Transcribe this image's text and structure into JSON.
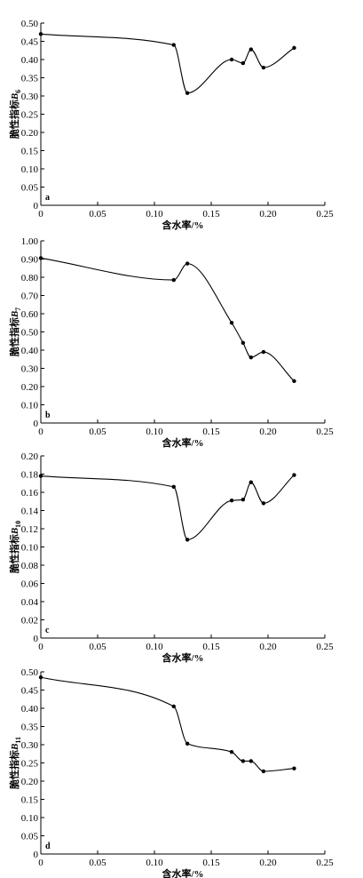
{
  "chart_data": [
    {
      "type": "line",
      "panel_label": "a",
      "xlabel": "含水率/%",
      "ylabel": "脆性指标B6",
      "ylabel_main": "脆性指标",
      "ylabel_italic": "B",
      "ylabel_sub": "6",
      "xlim": [
        0,
        0.25
      ],
      "ylim": [
        0,
        0.5
      ],
      "xticks": [
        "0",
        "0.05",
        "0.10",
        "0.15",
        "0.20",
        "0.25"
      ],
      "yticks": [
        "0",
        "0.05",
        "0.10",
        "0.15",
        "0.20",
        "0.25",
        "0.30",
        "0.35",
        "0.40",
        "0.45",
        "0.50"
      ],
      "x": [
        0,
        0.117,
        0.129,
        0.168,
        0.178,
        0.185,
        0.196,
        0.223
      ],
      "y": [
        0.47,
        0.44,
        0.308,
        0.4,
        0.39,
        0.428,
        0.378,
        0.432
      ]
    },
    {
      "type": "line",
      "panel_label": "b",
      "xlabel": "含水率/%",
      "ylabel": "脆性指标B7",
      "ylabel_main": "脆性指标",
      "ylabel_italic": "B",
      "ylabel_sub": "7",
      "xlim": [
        0,
        0.25
      ],
      "ylim": [
        0,
        1.0
      ],
      "xticks": [
        "0",
        "0.05",
        "0.10",
        "0.15",
        "0.20",
        "0.25"
      ],
      "yticks": [
        "0",
        "0.10",
        "0.20",
        "0.30",
        "0.40",
        "0.50",
        "0.60",
        "0.70",
        "0.80",
        "0.90",
        "1.00"
      ],
      "x": [
        0,
        0.117,
        0.129,
        0.168,
        0.178,
        0.185,
        0.196,
        0.223
      ],
      "y": [
        0.905,
        0.785,
        0.875,
        0.55,
        0.44,
        0.36,
        0.39,
        0.23
      ]
    },
    {
      "type": "line",
      "panel_label": "c",
      "xlabel": "含水率/%",
      "ylabel": "脆性指标B10",
      "ylabel_main": "脆性指标",
      "ylabel_italic": "B",
      "ylabel_sub": "10",
      "xlim": [
        0,
        0.25
      ],
      "ylim": [
        0,
        0.2
      ],
      "xticks": [
        "0",
        "0.05",
        "0.10",
        "0.15",
        "0.20",
        "0.25"
      ],
      "yticks": [
        "0",
        "0.02",
        "0.04",
        "0.06",
        "0.08",
        "0.10",
        "0.12",
        "0.14",
        "0.16",
        "0.18",
        "0.20"
      ],
      "x": [
        0,
        0.117,
        0.129,
        0.168,
        0.178,
        0.185,
        0.196,
        0.223
      ],
      "y": [
        0.178,
        0.166,
        0.108,
        0.151,
        0.152,
        0.171,
        0.148,
        0.179
      ]
    },
    {
      "type": "line",
      "panel_label": "d",
      "xlabel": "含水率/%",
      "ylabel": "脆性指标B11",
      "ylabel_main": "脆性指标",
      "ylabel_italic": "B",
      "ylabel_sub": "11",
      "xlim": [
        0,
        0.25
      ],
      "ylim": [
        0,
        0.5
      ],
      "xticks": [
        "0",
        "0.05",
        "0.10",
        "0.15",
        "0.20",
        "0.25"
      ],
      "yticks": [
        "0",
        "0.05",
        "0.10",
        "0.15",
        "0.20",
        "0.25",
        "0.30",
        "0.35",
        "0.40",
        "0.45",
        "0.50"
      ],
      "x": [
        0,
        0.117,
        0.129,
        0.168,
        0.178,
        0.185,
        0.196,
        0.223
      ],
      "y": [
        0.485,
        0.405,
        0.303,
        0.28,
        0.255,
        0.255,
        0.227,
        0.235
      ]
    }
  ]
}
